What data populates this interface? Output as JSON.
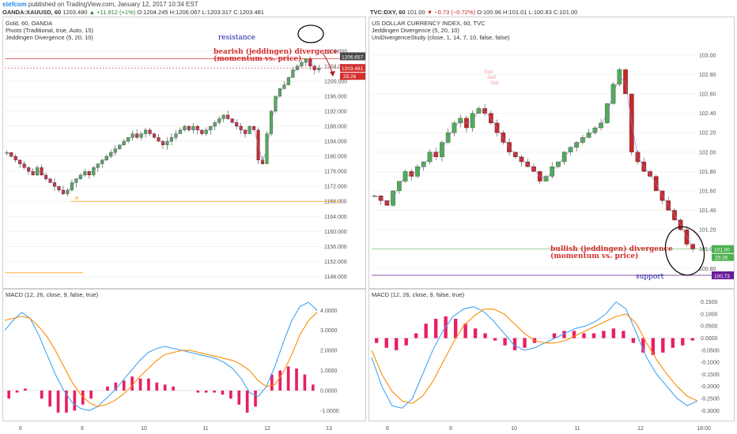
{
  "header": {
    "user": "stefcom",
    "published_text": "published on TradingView.com, January 12, 2017 10:34 EST"
  },
  "left_quote": {
    "symbol": "OANDA:XAUUSD, 60",
    "last": "1203.480",
    "change_arrow": "▲",
    "change": "+11.912 (+1%)",
    "open": "O:1204.245",
    "high": "H:1206.067",
    "low": "L:1203.317",
    "close": "C:1203.481"
  },
  "right_quote": {
    "symbol": "TVC:DXY, 60",
    "last": "101.00",
    "change_arrow": "▼",
    "change": "−0.73 (−0.72%)",
    "open": "O:100.96",
    "high": "H:101.01",
    "low": "L:100.83",
    "close": "C:101.00"
  },
  "left_legend": {
    "title": "Gold, 60, OANDA",
    "line2": "Pivots (Traditional, true, Auto, 15)",
    "line3": "Jeddingen Divergence (5, 20, 10)"
  },
  "right_legend": {
    "title": "US DOLLAR CURRENCY INDEX, 60, TVC",
    "line2": "Jeddingen Divergence (5, 20, 10)",
    "line3": "UniDivergenceStudy (close, 1, 14, 7, 10, false, false)"
  },
  "left_macd_label": "MACD (12, 26, close, 9, false, true)",
  "right_macd_label": "MACD (12, 26, close, 9, false, true)",
  "annotations": {
    "resistance": "resistance",
    "bearish_1": "bearish (jeddingen) divergence",
    "bearish_2": "(momentum vs. price)",
    "bullish_1": "bullish (jeddingen) divergence",
    "bullish_2": "(momentum vs. price)",
    "support": "support",
    "pivot_p": "P",
    "sell": "Sell"
  },
  "colors": {
    "up_candle": "#4caf50",
    "down_candle": "#c62828",
    "macd_line": "#42a5f5",
    "signal_line": "#fb8c00",
    "histogram": "#e91e63",
    "resistance_line": "#d32f2f",
    "support_line": "#6a1b9a",
    "pivot_line": "#ff9800",
    "annotation_red": "#d32f2f",
    "annotation_blue": "#1a1aa6"
  },
  "chart_data": [
    {
      "type": "candlestick",
      "title": "Gold, 60, OANDA",
      "ylim": [
        1146,
        1209
      ],
      "y_ticks": [
        "1208.000",
        "1204.000",
        "1200.000",
        "1196.000",
        "1192.000",
        "1188.000",
        "1184.000",
        "1180.000",
        "1176.000",
        "1172.000",
        "1168.000",
        "1164.000",
        "1160.000",
        "1156.000",
        "1152.000",
        "1148.000"
      ],
      "x_ticks": [
        "6",
        "9",
        "10",
        "11",
        "12",
        "13"
      ],
      "last_price_tag": "1203.481",
      "countdown_tag": "25:26",
      "high_tag": "1206.657",
      "resistance": 1206.0,
      "pivot_p": 1168.0,
      "pivot_s": 1149.0,
      "close_path": [
        1181,
        1180,
        1179,
        1178,
        1177,
        1176,
        1175,
        1177,
        1175,
        1174,
        1173,
        1172,
        1171,
        1170,
        1171,
        1173,
        1174,
        1175,
        1176,
        1175,
        1177,
        1178,
        1179,
        1180,
        1181,
        1182,
        1183,
        1184,
        1185,
        1186,
        1185,
        1186,
        1187,
        1186,
        1185,
        1184,
        1183,
        1184,
        1185,
        1186,
        1187,
        1188,
        1187,
        1188,
        1187,
        1186,
        1187,
        1188,
        1189,
        1190,
        1191,
        1190,
        1189,
        1188,
        1187,
        1186,
        1188,
        1187,
        1179,
        1178,
        1186,
        1192,
        1196,
        1198,
        1199,
        1201,
        1203,
        1204,
        1205,
        1206,
        1204,
        1203,
        1203.5
      ]
    },
    {
      "type": "line",
      "title": "MACD (12, 26, close, 9, false, true)",
      "ylim": [
        -1.3,
        4.6
      ],
      "y_ticks": [
        "4.0000",
        "3.0000",
        "2.0000",
        "1.0000",
        "0.0000",
        "-1.0000"
      ],
      "series": [
        {
          "values": [
            3.0,
            3.5,
            3.9,
            3.6,
            2.8,
            1.8,
            0.8,
            0.0,
            -0.6,
            -0.9,
            -1.0,
            -0.8,
            -0.4,
            0.0,
            0.5,
            1.0,
            1.5,
            1.9,
            2.1,
            2.2,
            2.1,
            2.0,
            1.9,
            1.8,
            1.7,
            1.6,
            1.4,
            1.1,
            0.6,
            -0.1,
            -0.3,
            0.2,
            1.2,
            2.4,
            3.5,
            4.2,
            4.4,
            4.0
          ]
        },
        {
          "values": [
            3.5,
            3.6,
            3.7,
            3.6,
            3.2,
            2.7,
            2.0,
            1.2,
            0.4,
            -0.2,
            -0.6,
            -0.8,
            -0.7,
            -0.5,
            -0.2,
            0.2,
            0.7,
            1.1,
            1.5,
            1.8,
            1.9,
            2.0,
            2.0,
            1.9,
            1.8,
            1.7,
            1.6,
            1.5,
            1.3,
            1.0,
            0.5,
            0.2,
            0.3,
            0.9,
            1.8,
            2.8,
            3.5,
            3.9
          ]
        }
      ],
      "histogram": [
        -0.4,
        -0.1,
        0.1,
        0.0,
        -0.4,
        -0.8,
        -1.1,
        -1.1,
        -1.0,
        -0.7,
        -0.4,
        0.0,
        0.2,
        0.4,
        0.5,
        0.7,
        0.6,
        0.6,
        0.4,
        0.3,
        0.2,
        0.0,
        0.0,
        -0.1,
        -0.1,
        -0.1,
        -0.2,
        -0.4,
        -0.7,
        -1.1,
        -0.8,
        0.0,
        0.8,
        1.0,
        1.2,
        1.1,
        0.8,
        0.3
      ]
    },
    {
      "type": "candlestick",
      "title": "US DOLLAR CURRENCY INDEX, 60, TVC",
      "ylim": [
        100.68,
        103.08
      ],
      "y_ticks": [
        "103.00",
        "102.80",
        "102.60",
        "102.40",
        "102.20",
        "102.00",
        "101.80",
        "101.60",
        "101.40",
        "101.20",
        "101.00",
        "100.80"
      ],
      "x_ticks": [
        "6",
        "9",
        "10",
        "11",
        "12",
        "18:00"
      ],
      "last_price_tag": "101.00",
      "countdown_tag": "25:26",
      "support_tag": "100.73",
      "support": 100.73,
      "close_path": [
        101.55,
        101.5,
        101.45,
        101.6,
        101.7,
        101.8,
        101.75,
        101.85,
        101.9,
        102.0,
        101.95,
        102.1,
        102.2,
        102.3,
        102.35,
        102.25,
        102.4,
        102.45,
        102.4,
        102.3,
        102.2,
        102.1,
        102.0,
        101.95,
        101.9,
        101.85,
        101.8,
        101.7,
        101.75,
        101.85,
        101.9,
        102.0,
        102.05,
        102.1,
        102.15,
        102.2,
        102.25,
        102.3,
        102.5,
        102.7,
        102.85,
        102.6,
        102.0,
        101.9,
        101.8,
        101.75,
        101.6,
        101.5,
        101.4,
        101.3,
        101.2,
        101.05,
        101.0
      ]
    },
    {
      "type": "line",
      "title": "MACD (12, 26, close, 9, false, true)",
      "ylim": [
        -0.325,
        0.165
      ],
      "y_ticks": [
        "0.1500",
        "0.1000",
        "0.0500",
        "0.0000",
        "-0.0500",
        "-0.1000",
        "-0.1500",
        "-0.2000",
        "-0.2500",
        "-0.3000"
      ],
      "series": [
        {
          "values": [
            -0.08,
            -0.2,
            -0.28,
            -0.29,
            -0.25,
            -0.15,
            -0.05,
            0.03,
            0.09,
            0.12,
            0.13,
            0.11,
            0.07,
            0.02,
            -0.03,
            -0.05,
            -0.04,
            -0.02,
            0.0,
            0.02,
            0.04,
            0.05,
            0.07,
            0.1,
            0.15,
            0.12,
            0.02,
            -0.08,
            -0.15,
            -0.2,
            -0.25,
            -0.28,
            -0.26
          ]
        },
        {
          "values": [
            -0.05,
            -0.15,
            -0.22,
            -0.26,
            -0.27,
            -0.24,
            -0.18,
            -0.1,
            -0.02,
            0.05,
            0.09,
            0.12,
            0.12,
            0.1,
            0.06,
            0.02,
            -0.01,
            -0.02,
            -0.02,
            -0.01,
            0.01,
            0.03,
            0.05,
            0.07,
            0.09,
            0.1,
            0.06,
            -0.02,
            -0.09,
            -0.15,
            -0.2,
            -0.24,
            -0.26
          ]
        }
      ],
      "histogram": [
        -0.02,
        -0.04,
        -0.05,
        -0.03,
        0.02,
        0.06,
        0.08,
        0.09,
        0.08,
        0.06,
        0.04,
        0.02,
        -0.01,
        -0.03,
        -0.05,
        -0.04,
        -0.02,
        0.0,
        0.02,
        0.03,
        0.03,
        0.02,
        0.02,
        0.03,
        0.04,
        0.03,
        -0.02,
        -0.06,
        -0.07,
        -0.06,
        -0.04,
        -0.03,
        -0.01
      ]
    }
  ]
}
